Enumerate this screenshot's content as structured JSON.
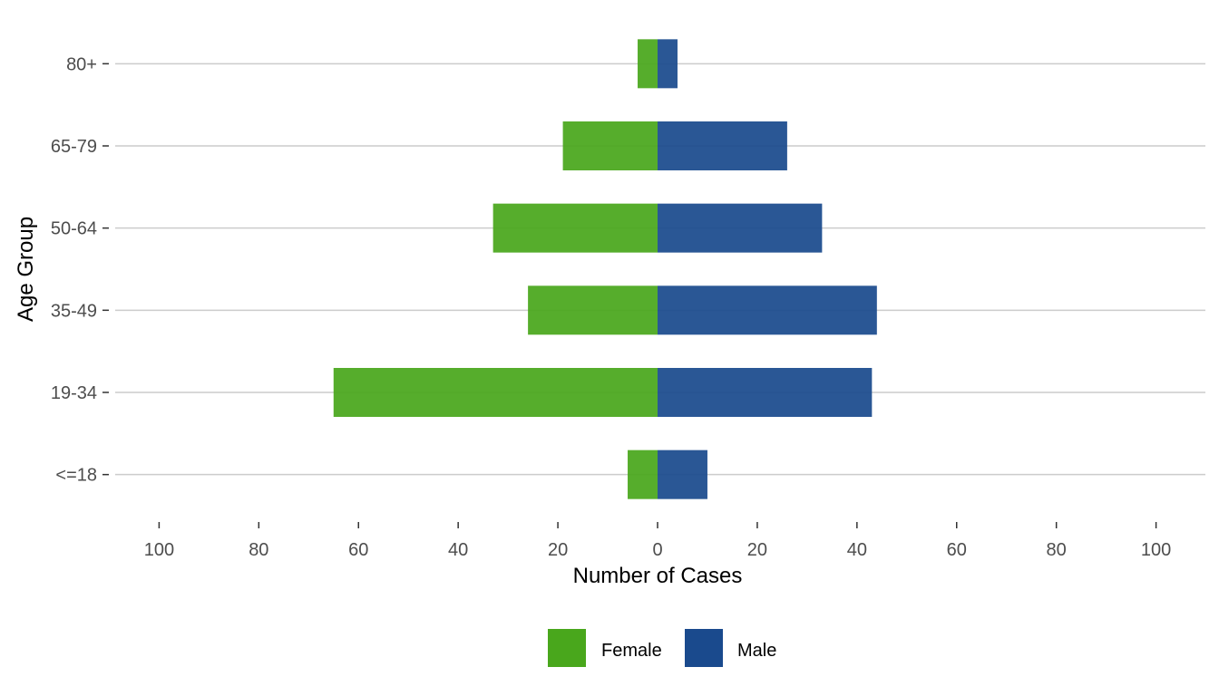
{
  "chart_data": {
    "type": "bar",
    "orientation": "horizontal",
    "diverging": true,
    "categories": [
      "<=18",
      "19-34",
      "35-49",
      "50-64",
      "65-79",
      "80+"
    ],
    "series": [
      {
        "name": "Female",
        "values": [
          6,
          65,
          26,
          33,
          19,
          4
        ],
        "color": "#49A71C"
      },
      {
        "name": "Male",
        "values": [
          10,
          43,
          44,
          33,
          26,
          4
        ],
        "color": "#1A4A8D"
      }
    ],
    "x_ticks": [
      -100,
      -80,
      -60,
      -40,
      -20,
      0,
      20,
      40,
      60,
      80,
      100
    ],
    "x_tick_labels": [
      "100",
      "80",
      "60",
      "40",
      "20",
      "0",
      "20",
      "40",
      "60",
      "80",
      "100"
    ],
    "xlim": [
      -100,
      100
    ],
    "xlabel": "Number of Cases",
    "ylabel": "Age Group",
    "title": "",
    "grid": "horizontal",
    "legend": "bottom",
    "colors": {
      "gridline": "#cccccc",
      "tick_text": "#4d4d4d",
      "title_text": "#000000"
    }
  }
}
